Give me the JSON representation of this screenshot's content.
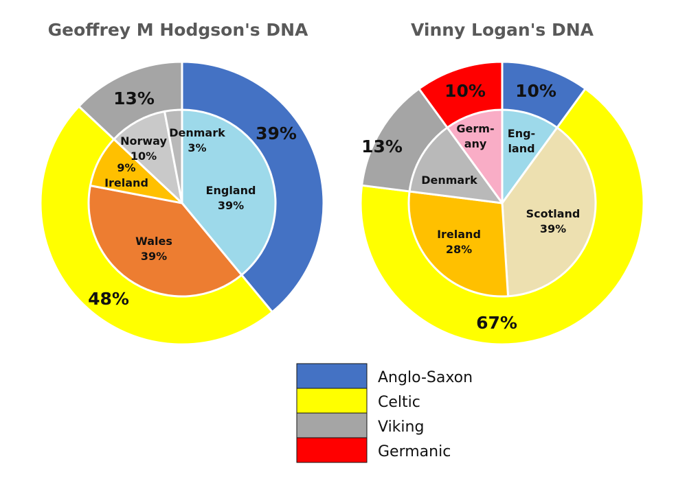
{
  "chart_data": [
    {
      "type": "pie",
      "title": "Geoffrey M Hodgson's DNA",
      "outer_ring": [
        {
          "category": "Anglo-Saxon",
          "value": 39,
          "label": "39%"
        },
        {
          "category": "Celtic",
          "value": 48,
          "label": "48%"
        },
        {
          "category": "Viking",
          "value": 13,
          "label": "13%"
        }
      ],
      "inner_ring": [
        {
          "region": "England",
          "category": "Anglo-Saxon",
          "value": 39,
          "label_lines": [
            "England",
            "39%"
          ]
        },
        {
          "region": "Wales",
          "category": "Celtic",
          "value": 39,
          "label_lines": [
            "Wales",
            "39%"
          ]
        },
        {
          "region": "Ireland",
          "category": "Celtic",
          "value": 9,
          "label_lines": [
            "9%",
            "Ireland"
          ]
        },
        {
          "region": "Norway",
          "category": "Viking",
          "value": 10,
          "label_lines": [
            "Norway",
            "10%"
          ]
        },
        {
          "region": "Denmark",
          "category": "Viking",
          "value": 3,
          "label_lines": [
            "Denmark",
            "3%"
          ]
        }
      ]
    },
    {
      "type": "pie",
      "title": "Vinny Logan's DNA",
      "outer_ring": [
        {
          "category": "Anglo-Saxon",
          "value": 10,
          "label": "10%"
        },
        {
          "category": "Celtic",
          "value": 67,
          "label": "67%"
        },
        {
          "category": "Viking",
          "value": 13,
          "label": "13%"
        },
        {
          "category": "Germanic",
          "value": 10,
          "label": "10%"
        }
      ],
      "inner_ring": [
        {
          "region": "England",
          "category": "Anglo-Saxon",
          "value": 10,
          "label_lines": [
            "Eng-",
            "land"
          ]
        },
        {
          "region": "Scotland",
          "category": "Celtic",
          "value": 39,
          "label_lines": [
            "Scotland",
            "39%"
          ]
        },
        {
          "region": "Ireland",
          "category": "Celtic",
          "value": 28,
          "label_lines": [
            "Ireland",
            "28%"
          ]
        },
        {
          "region": "Denmark",
          "category": "Viking",
          "value": 13,
          "label_lines": [
            "Denmark"
          ]
        },
        {
          "region": "Germany",
          "category": "Germanic",
          "value": 10,
          "label_lines": [
            "Germ-",
            "any"
          ]
        }
      ]
    }
  ],
  "legend": [
    {
      "name": "Anglo-Saxon",
      "color": "#4472C4"
    },
    {
      "name": "Celtic",
      "color": "#FFFF00"
    },
    {
      "name": "Viking",
      "color": "#A5A5A5"
    },
    {
      "name": "Germanic",
      "color": "#FF0000"
    }
  ],
  "colors": {
    "outer": {
      "Anglo-Saxon": "#4472C4",
      "Celtic": "#FFFF00",
      "Viking": "#A5A5A5",
      "Germanic": "#FF0000"
    },
    "inner": {
      "England": "#9DD9EA",
      "Wales": "#ED7D31",
      "Ireland": "#FFC000",
      "Norway": "#C9C9C9",
      "Denmark": "#B9B9B9",
      "Scotland": "#EDE0B0",
      "Germany": "#F9ADC6"
    }
  }
}
